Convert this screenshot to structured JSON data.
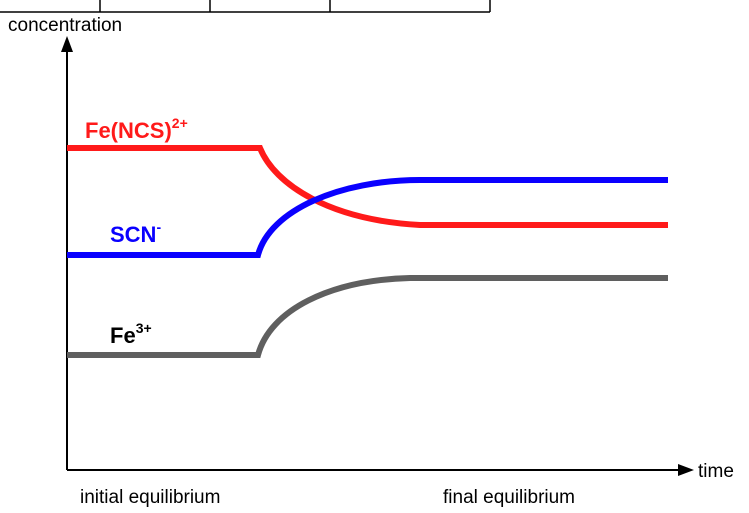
{
  "axes": {
    "y_label": "concentration",
    "x_label": "time"
  },
  "phases": [
    "initial equilibrium",
    "final equilibrium"
  ],
  "species": [
    {
      "name": "Fe(NCS)",
      "charge": "2+"
    },
    {
      "name": "SCN",
      "charge": "-"
    },
    {
      "name": "Fe",
      "charge": "3+"
    }
  ]
}
